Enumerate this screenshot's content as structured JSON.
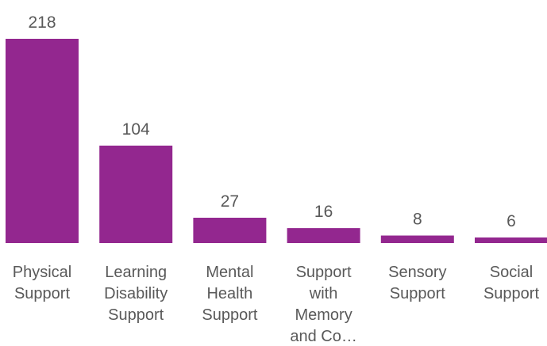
{
  "chart_data": {
    "type": "bar",
    "categories": [
      [
        "Physical",
        "Support"
      ],
      [
        "Learning",
        "Disability",
        "Support"
      ],
      [
        "Mental",
        "Health",
        "Support"
      ],
      [
        "Support",
        "with",
        "Memory",
        "and Co…"
      ],
      [
        "Sensory",
        "Support"
      ],
      [
        "Social",
        "Support"
      ]
    ],
    "values": [
      218,
      104,
      27,
      16,
      8,
      6
    ],
    "ylim": [
      0,
      218
    ],
    "bar_color": "#93278F",
    "label_color": "#595959",
    "grid": false,
    "legend": "none"
  }
}
